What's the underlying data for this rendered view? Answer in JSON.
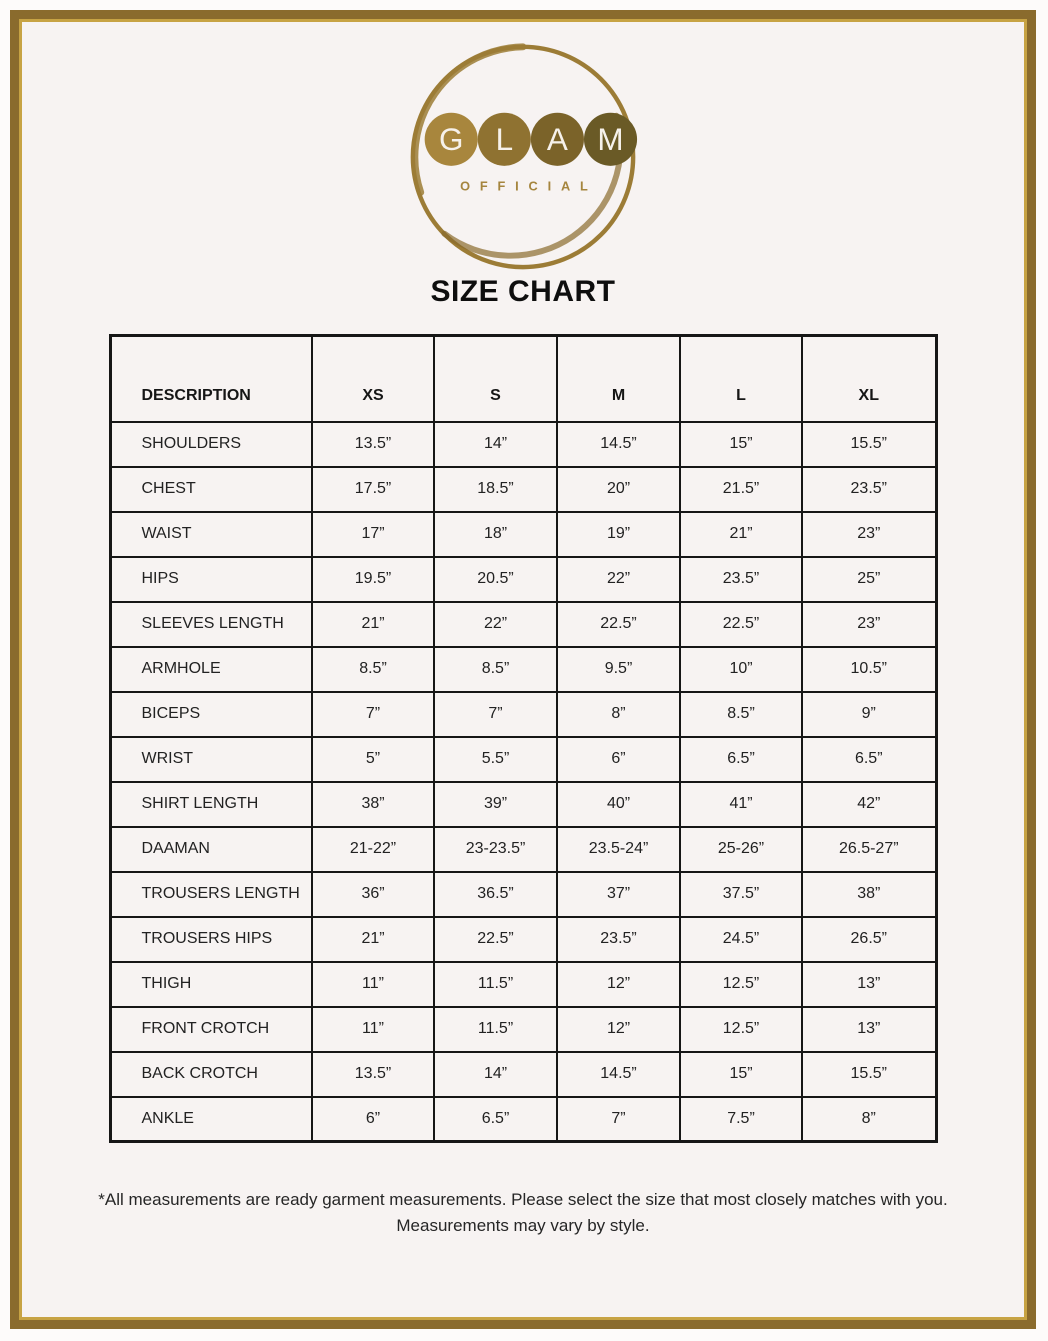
{
  "brand": {
    "letters": [
      "G",
      "L",
      "A",
      "M"
    ],
    "subtitle": "OFFICIAL",
    "ring_color": "#9c7c36",
    "circle_colors": [
      "#a8863d",
      "#8f7231",
      "#7b6329",
      "#6a5a26"
    ],
    "letter_color": "#f6f1ea"
  },
  "title": {
    "text": "SIZE CHART"
  },
  "colors": {
    "frame_border": "#8a6b2d",
    "frame_inner_line": "#c7a344",
    "page_background": "#f7f3f2",
    "table_border": "#161616",
    "text": "#222222"
  },
  "size_table": {
    "columns": [
      "DESCRIPTION",
      "XS",
      "S",
      "M",
      "L",
      "XL"
    ],
    "rows": [
      {
        "label": "SHOULDERS",
        "values": [
          "13.5”",
          "14”",
          "14.5”",
          "15”",
          "15.5”"
        ]
      },
      {
        "label": "CHEST",
        "values": [
          "17.5”",
          "18.5”",
          "20”",
          "21.5”",
          "23.5”"
        ]
      },
      {
        "label": "WAIST",
        "values": [
          "17”",
          "18”",
          "19”",
          "21”",
          "23”"
        ]
      },
      {
        "label": "HIPS",
        "values": [
          "19.5”",
          "20.5”",
          "22”",
          "23.5”",
          "25”"
        ]
      },
      {
        "label": "SLEEVES LENGTH",
        "values": [
          "21”",
          "22”",
          "22.5”",
          "22.5”",
          "23”"
        ]
      },
      {
        "label": "ARMHOLE",
        "values": [
          "8.5”",
          "8.5”",
          "9.5”",
          "10”",
          "10.5”"
        ]
      },
      {
        "label": "BICEPS",
        "values": [
          "7”",
          "7”",
          "8”",
          "8.5”",
          "9”"
        ]
      },
      {
        "label": "WRIST",
        "values": [
          "5”",
          "5.5”",
          "6”",
          "6.5”",
          "6.5”"
        ]
      },
      {
        "label": "SHIRT LENGTH",
        "values": [
          "38”",
          "39”",
          "40”",
          "41”",
          "42”"
        ]
      },
      {
        "label": "DAAMAN",
        "values": [
          "21-22”",
          "23-23.5”",
          "23.5-24”",
          "25-26”",
          "26.5-27”"
        ]
      },
      {
        "label": "TROUSERS LENGTH",
        "values": [
          "36”",
          "36.5”",
          "37”",
          "37.5”",
          "38”"
        ]
      },
      {
        "label": "TROUSERS HIPS",
        "values": [
          "21”",
          "22.5”",
          "23.5”",
          "24.5”",
          "26.5”"
        ]
      },
      {
        "label": "THIGH",
        "values": [
          "11”",
          "11.5”",
          "12”",
          "12.5”",
          "13”"
        ]
      },
      {
        "label": "FRONT CROTCH",
        "values": [
          "11”",
          "11.5”",
          "12”",
          "12.5”",
          "13”"
        ]
      },
      {
        "label": "BACK CROTCH",
        "values": [
          "13.5”",
          "14”",
          "14.5”",
          "15”",
          "15.5”"
        ]
      },
      {
        "label": "ANKLE",
        "values": [
          "6”",
          "6.5”",
          "7”",
          "7.5”",
          "8”"
        ]
      }
    ]
  },
  "footnote": {
    "line1": "*All measurements are ready garment measurements. Please select the size that most closely matches with you.",
    "line2": "Measurements may vary by style."
  }
}
